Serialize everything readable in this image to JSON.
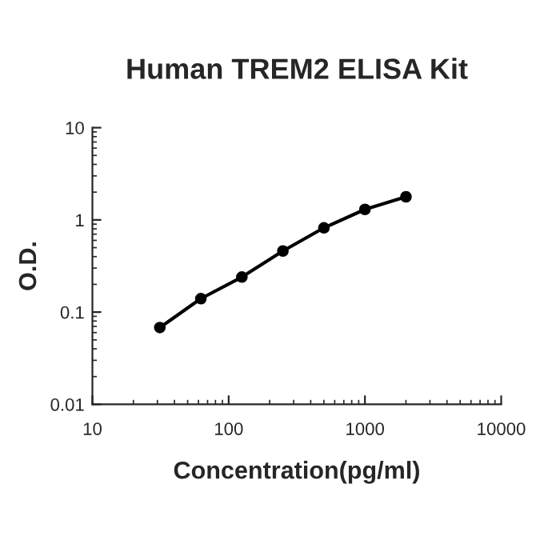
{
  "chart_data": {
    "type": "line",
    "title": "Human TREM2 ELISA Kit",
    "xlabel": "Concentration(pg/ml)",
    "ylabel": "O.D.",
    "x": [
      31.25,
      62.5,
      125,
      250,
      500,
      1000,
      2000
    ],
    "series": [
      {
        "color": "#000000",
        "values": [
          0.068,
          0.14,
          0.24,
          0.46,
          0.82,
          1.3,
          1.78
        ]
      }
    ],
    "log": "xy",
    "xlim": [
      10,
      10000
    ],
    "ylim": [
      0.01,
      10
    ],
    "xticks": [
      10,
      100,
      1000,
      10000
    ],
    "yticks": [
      0.01,
      0.1,
      1,
      10
    ],
    "marker": "circle",
    "line_style": "solid",
    "grid": false,
    "legend": false
  }
}
